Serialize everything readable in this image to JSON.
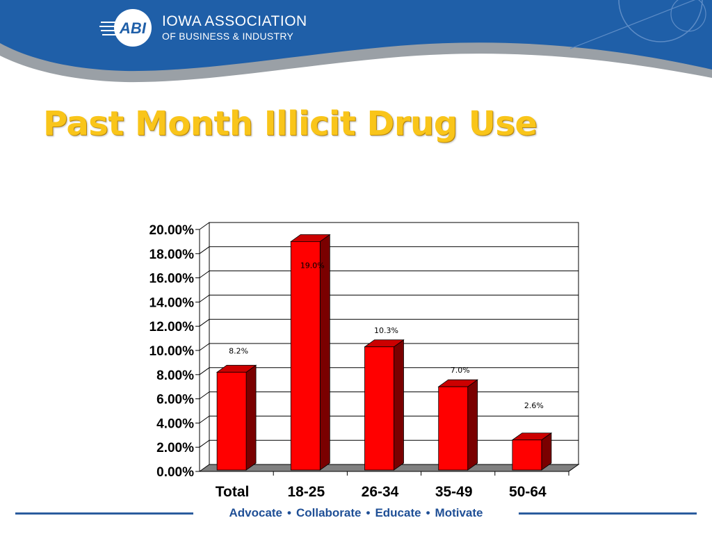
{
  "header": {
    "logo_badge": "ABI",
    "org_line1": "IOWA ASSOCIATION",
    "org_line2": "OF BUSINESS & INDUSTRY",
    "colors": {
      "band": "#1f5fa8",
      "swoosh": "#9aa0a6"
    }
  },
  "title": "Past Month Illicit Drug Use",
  "chart_data": {
    "type": "bar",
    "categories": [
      "Total",
      "18-25",
      "26-34",
      "35-49",
      "50-64"
    ],
    "values": [
      8.2,
      19.0,
      10.3,
      7.0,
      2.6
    ],
    "data_labels": [
      "8.2%",
      "19.0%",
      "10.3%",
      "7.0%",
      "2.6%"
    ],
    "y_ticks": [
      "0.00%",
      "2.00%",
      "4.00%",
      "6.00%",
      "8.00%",
      "10.00%",
      "12.00%",
      "14.00%",
      "16.00%",
      "18.00%",
      "20.00%"
    ],
    "ylim": [
      0,
      20
    ],
    "grid": true,
    "legend": "none",
    "bar_color": "#ff0000",
    "style": "3d"
  },
  "footer": {
    "tagline": [
      "Advocate",
      "Collaborate",
      "Educate",
      "Motivate"
    ],
    "separator": "•"
  }
}
